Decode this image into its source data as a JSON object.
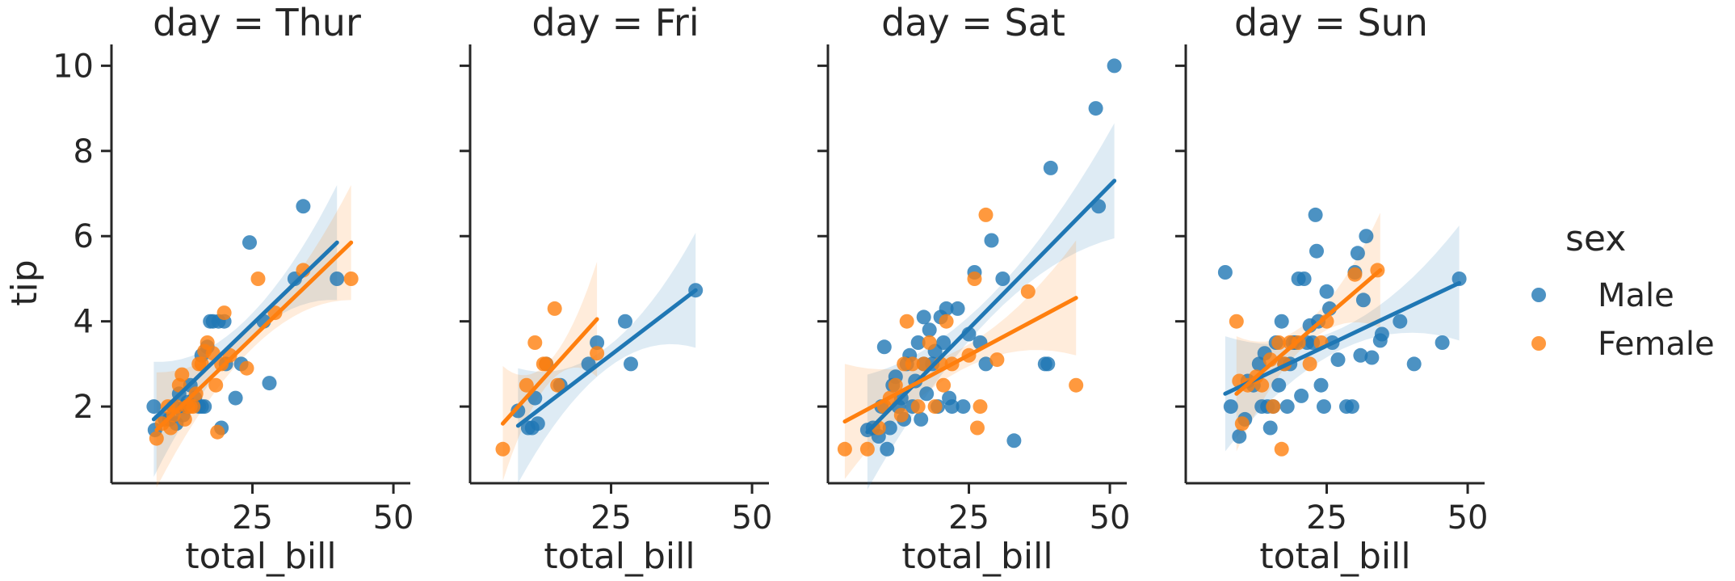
{
  "chart_data": {
    "type": "scatter",
    "facet_variable": "day",
    "xlabel": "total_bill",
    "ylabel": "tip",
    "xlim": [
      0,
      53
    ],
    "ylim": [
      0.2,
      10.5
    ],
    "xticks": [
      25,
      50
    ],
    "yticks": [
      2,
      4,
      6,
      8,
      10
    ],
    "colors": {
      "Male": "#1f77b4",
      "Female": "#ff7f0e"
    },
    "legend": {
      "title": "sex",
      "entries": [
        "Male",
        "Female"
      ],
      "placement": "right"
    },
    "facets": [
      {
        "title": "day = Thur",
        "series": [
          {
            "name": "Male",
            "points": [
              [
                7.5,
                2.0
              ],
              [
                7.7,
                1.45
              ],
              [
                9.5,
                1.7
              ],
              [
                10.3,
                1.7
              ],
              [
                11.0,
                2.0
              ],
              [
                11.5,
                1.6
              ],
              [
                12.0,
                2.3
              ],
              [
                12.7,
                1.8
              ],
              [
                13.0,
                2.0
              ],
              [
                13.5,
                2.1
              ],
              [
                14.0,
                2.5
              ],
              [
                14.8,
                2.2
              ],
              [
                15.5,
                2.0
              ],
              [
                16.0,
                2.0
              ],
              [
                16.5,
                2.0
              ],
              [
                16.0,
                3.2
              ],
              [
                17.0,
                3.4
              ],
              [
                18.0,
                4.0
              ],
              [
                19.0,
                4.0
              ],
              [
                17.5,
                4.0
              ],
              [
                19.5,
                1.5
              ],
              [
                20.0,
                4.0
              ],
              [
                20.3,
                3.0
              ],
              [
                22.0,
                2.2
              ],
              [
                23.0,
                3.0
              ],
              [
                24.5,
                5.85
              ],
              [
                27.0,
                4.0
              ],
              [
                28.0,
                2.55
              ],
              [
                32.5,
                5.0
              ],
              [
                34.0,
                6.7
              ],
              [
                40.0,
                5.0
              ]
            ],
            "fit": {
              "x": [
                7.5,
                40.0
              ],
              "y": [
                1.7,
                5.85
              ]
            }
          },
          {
            "name": "Female",
            "points": [
              [
                8.0,
                1.25
              ],
              [
                9.0,
                1.6
              ],
              [
                10.0,
                2.0
              ],
              [
                10.5,
                1.5
              ],
              [
                11.0,
                1.8
              ],
              [
                11.5,
                2.0
              ],
              [
                12.0,
                2.5
              ],
              [
                12.5,
                2.75
              ],
              [
                13.0,
                1.7
              ],
              [
                13.5,
                2.0
              ],
              [
                14.0,
                2.0
              ],
              [
                14.5,
                2.0
              ],
              [
                15.0,
                2.3
              ],
              [
                15.5,
                3.0
              ],
              [
                16.0,
                3.0
              ],
              [
                16.5,
                3.3
              ],
              [
                17.0,
                3.5
              ],
              [
                18.0,
                3.25
              ],
              [
                18.5,
                2.5
              ],
              [
                18.8,
                1.4
              ],
              [
                19.5,
                3.0
              ],
              [
                20.0,
                4.2
              ],
              [
                21.0,
                3.2
              ],
              [
                24.0,
                2.9
              ],
              [
                26.0,
                5.0
              ],
              [
                29.0,
                4.2
              ],
              [
                34.0,
                5.2
              ],
              [
                42.5,
                5.0
              ]
            ],
            "fit": {
              "x": [
                8.0,
                42.5
              ],
              "y": [
                1.45,
                5.85
              ]
            }
          }
        ]
      },
      {
        "title": "day = Fri",
        "series": [
          {
            "name": "Male",
            "points": [
              [
                8.5,
                1.9
              ],
              [
                10.3,
                1.5
              ],
              [
                11.0,
                1.5
              ],
              [
                11.5,
                2.2
              ],
              [
                12.0,
                1.6
              ],
              [
                13.5,
                3.0
              ],
              [
                16.0,
                2.5
              ],
              [
                21.0,
                3.0
              ],
              [
                22.5,
                3.5
              ],
              [
                27.5,
                4.0
              ],
              [
                28.5,
                3.0
              ],
              [
                40.0,
                4.73
              ]
            ],
            "fit": {
              "x": [
                8.5,
                40.0
              ],
              "y": [
                1.55,
                4.73
              ]
            }
          },
          {
            "name": "Female",
            "points": [
              [
                5.8,
                1.0
              ],
              [
                10.0,
                2.5
              ],
              [
                11.5,
                3.5
              ],
              [
                13.0,
                3.0
              ],
              [
                13.5,
                3.0
              ],
              [
                15.0,
                4.3
              ],
              [
                15.5,
                2.5
              ],
              [
                22.5,
                3.25
              ]
            ],
            "fit": {
              "x": [
                5.8,
                22.5
              ],
              "y": [
                1.6,
                4.05
              ]
            }
          }
        ]
      },
      {
        "title": "day = Sat",
        "series": [
          {
            "name": "Male",
            "points": [
              [
                7.0,
                1.45
              ],
              [
                8.0,
                1.5
              ],
              [
                9.0,
                1.3
              ],
              [
                9.5,
                2.0
              ],
              [
                10.0,
                3.4
              ],
              [
                10.5,
                1.0
              ],
              [
                11.0,
                1.5
              ],
              [
                11.5,
                2.5
              ],
              [
                12.0,
                2.7
              ],
              [
                12.5,
                2.0
              ],
              [
                13.0,
                2.2
              ],
              [
                13.5,
                1.7
              ],
              [
                14.0,
                3.0
              ],
              [
                14.5,
                3.2
              ],
              [
                15.0,
                2.0
              ],
              [
                15.5,
                2.6
              ],
              [
                16.0,
                3.5
              ],
              [
                16.5,
                1.7
              ],
              [
                17.0,
                4.1
              ],
              [
                17.0,
                3.0
              ],
              [
                17.5,
                2.3
              ],
              [
                18.0,
                3.8
              ],
              [
                18.5,
                3.0
              ],
              [
                19.0,
                3.3
              ],
              [
                19.5,
                2.0
              ],
              [
                20.0,
                4.1
              ],
              [
                20.5,
                3.5
              ],
              [
                21.0,
                4.3
              ],
              [
                21.5,
                2.2
              ],
              [
                22.0,
                2.0
              ],
              [
                23.0,
                4.3
              ],
              [
                24.0,
                2.0
              ],
              [
                25.0,
                3.7
              ],
              [
                26.0,
                5.15
              ],
              [
                27.0,
                3.5
              ],
              [
                28.0,
                3.0
              ],
              [
                29.0,
                5.9
              ],
              [
                31.0,
                5.0
              ],
              [
                33.0,
                1.2
              ],
              [
                38.5,
                3.0
              ],
              [
                39.0,
                3.0
              ],
              [
                39.5,
                7.6
              ],
              [
                47.5,
                9.0
              ],
              [
                48.0,
                6.7
              ],
              [
                50.8,
                10.0
              ]
            ],
            "fit": {
              "x": [
                7.0,
                50.8
              ],
              "y": [
                1.4,
                7.3
              ]
            }
          },
          {
            "name": "Female",
            "points": [
              [
                3.0,
                1.0
              ],
              [
                7.0,
                1.0
              ],
              [
                9.0,
                1.5
              ],
              [
                10.0,
                2.0
              ],
              [
                11.0,
                2.2
              ],
              [
                12.0,
                2.5
              ],
              [
                13.0,
                1.8
              ],
              [
                13.5,
                3.0
              ],
              [
                14.0,
                4.0
              ],
              [
                15.0,
                3.0
              ],
              [
                16.0,
                2.0
              ],
              [
                17.0,
                3.0
              ],
              [
                18.0,
                3.5
              ],
              [
                19.0,
                2.0
              ],
              [
                20.0,
                3.0
              ],
              [
                20.5,
                2.5
              ],
              [
                21.0,
                4.0
              ],
              [
                22.0,
                3.0
              ],
              [
                25.0,
                3.2
              ],
              [
                26.0,
                5.0
              ],
              [
                26.5,
                1.5
              ],
              [
                27.0,
                2.0
              ],
              [
                28.0,
                6.5
              ],
              [
                30.0,
                3.1
              ],
              [
                35.5,
                4.7
              ],
              [
                44.0,
                2.5
              ]
            ],
            "fit": {
              "x": [
                3.0,
                44.0
              ],
              "y": [
                1.65,
                4.55
              ]
            }
          }
        ]
      },
      {
        "title": "day = Sun",
        "series": [
          {
            "name": "Male",
            "points": [
              [
                7.0,
                5.15
              ],
              [
                8.0,
                2.0
              ],
              [
                9.5,
                1.3
              ],
              [
                10.5,
                1.7
              ],
              [
                11.0,
                2.6
              ],
              [
                12.0,
                2.5
              ],
              [
                13.0,
                3.0
              ],
              [
                13.5,
                2.0
              ],
              [
                14.0,
                3.25
              ],
              [
                14.5,
                2.0
              ],
              [
                15.0,
                1.5
              ],
              [
                15.5,
                2.0
              ],
              [
                16.0,
                3.5
              ],
              [
                16.5,
                2.5
              ],
              [
                17.0,
                4.0
              ],
              [
                17.5,
                3.0
              ],
              [
                18.0,
                2.0
              ],
              [
                18.5,
                3.0
              ],
              [
                19.0,
                3.5
              ],
              [
                19.5,
                3.5
              ],
              [
                20.0,
                5.0
              ],
              [
                20.5,
                2.25
              ],
              [
                21.0,
                5.0
              ],
              [
                21.5,
                3.5
              ],
              [
                22.0,
                3.9
              ],
              [
                22.5,
                3.5
              ],
              [
                23.0,
                6.5
              ],
              [
                23.2,
                5.65
              ],
              [
                23.5,
                4.0
              ],
              [
                24.0,
                2.5
              ],
              [
                24.5,
                2.0
              ],
              [
                25.0,
                4.7
              ],
              [
                25.5,
                4.3
              ],
              [
                26.0,
                3.5
              ],
              [
                27.0,
                3.1
              ],
              [
                28.5,
                2.0
              ],
              [
                29.5,
                2.0
              ],
              [
                30.0,
                5.15
              ],
              [
                30.5,
                5.6
              ],
              [
                31.0,
                3.2
              ],
              [
                31.5,
                4.5
              ],
              [
                32.0,
                6.0
              ],
              [
                33.0,
                3.15
              ],
              [
                34.5,
                3.55
              ],
              [
                34.8,
                3.7
              ],
              [
                38.0,
                4.0
              ],
              [
                40.5,
                3.0
              ],
              [
                45.5,
                3.5
              ],
              [
                48.5,
                5.0
              ]
            ],
            "fit": {
              "x": [
                7.0,
                48.5
              ],
              "y": [
                2.3,
                4.9
              ]
            }
          },
          {
            "name": "Female",
            "points": [
              [
                9.0,
                4.0
              ],
              [
                9.5,
                2.6
              ],
              [
                10.0,
                1.6
              ],
              [
                11.0,
                2.5
              ],
              [
                12.5,
                2.7
              ],
              [
                13.5,
                2.5
              ],
              [
                15.0,
                3.1
              ],
              [
                15.5,
                2.0
              ],
              [
                16.5,
                3.5
              ],
              [
                17.0,
                1.0
              ],
              [
                17.5,
                3.0
              ],
              [
                18.5,
                3.5
              ],
              [
                20.0,
                3.5
              ],
              [
                22.0,
                3.0
              ],
              [
                24.0,
                3.5
              ],
              [
                25.0,
                4.0
              ],
              [
                30.0,
                5.1
              ],
              [
                34.0,
                5.2
              ]
            ],
            "fit": {
              "x": [
                9.0,
                34.5
              ],
              "y": [
                2.3,
                5.2
              ]
            }
          }
        ]
      }
    ]
  }
}
